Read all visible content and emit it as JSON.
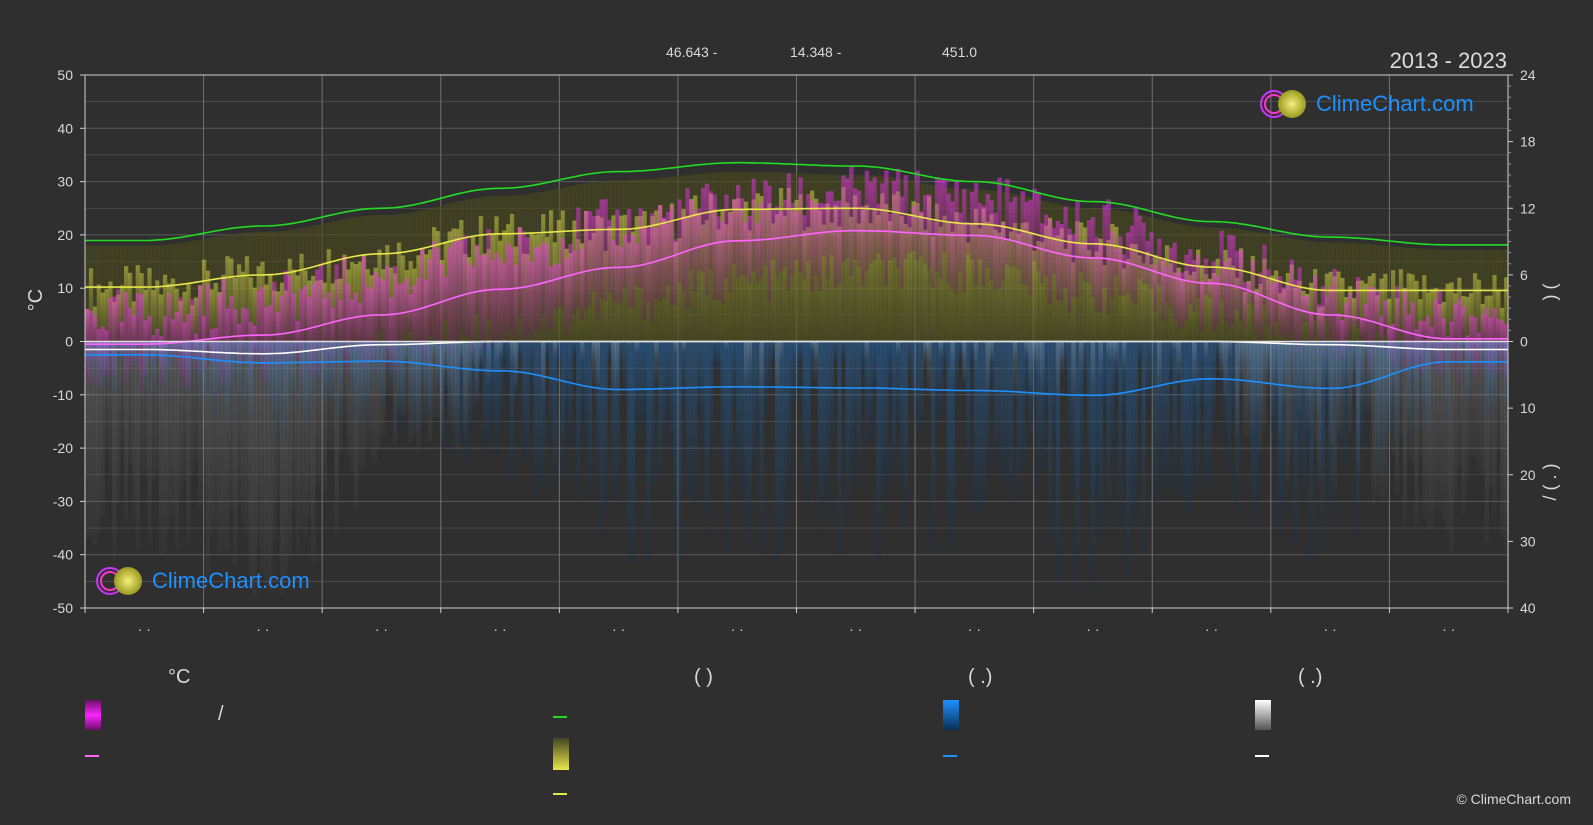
{
  "header": {
    "period": "2013 - 2023",
    "coord_lat": "46.643 -",
    "coord_lon": "14.348 -",
    "elevation": "451.0"
  },
  "logo": {
    "text": "ClimeChart.com"
  },
  "copyright": "© ClimeChart.com",
  "axes": {
    "left_unit": "°C",
    "left_ticks": [
      50,
      40,
      30,
      20,
      10,
      0,
      -10,
      -20,
      -30,
      -40,
      -50
    ],
    "right_top_ticks": [
      24,
      18,
      12,
      6,
      0
    ],
    "right_bottom_ticks": [
      10,
      20,
      30,
      40
    ],
    "right_label_top": ")   (",
    "right_label_bottom": "/   ( . )",
    "month_labels": [
      "· ·",
      "· ·",
      "· ·",
      "· ·",
      "· ·",
      "· ·",
      "· ·",
      "· ·",
      "· ·",
      "· ·",
      "· ·",
      "· ·"
    ]
  },
  "legend": {
    "temp_header": "°C",
    "sun_header": "(          )",
    "rain_header": "(   .)",
    "snow_header": "(   .)",
    "temp_range_label": "/"
  },
  "colors": {
    "daylight": "#22dd22",
    "sunshine": "#e8e84a",
    "temp_mean": "#ff66ff",
    "rain": "#1e90ff",
    "snow": "#ffffff",
    "temp_band": "#cc33cc",
    "sun_band": "#9a9a2e"
  },
  "chart_data": {
    "type": "line",
    "title": "",
    "x_months": [
      1,
      2,
      3,
      4,
      5,
      6,
      7,
      8,
      9,
      10,
      11,
      12
    ],
    "left_axis": {
      "unit": "°C",
      "ylim": [
        -50,
        50
      ]
    },
    "right_axis_top": {
      "ylim": [
        0,
        24
      ]
    },
    "right_axis_bottom": {
      "ylim": [
        0,
        40
      ],
      "inverted": true
    },
    "series": [
      {
        "key": "daylight",
        "axis": "right_top",
        "values": [
          9.1,
          10.4,
          12.0,
          13.8,
          15.3,
          16.1,
          15.8,
          14.4,
          12.6,
          10.8,
          9.4,
          8.7
        ]
      },
      {
        "key": "sunshine",
        "axis": "right_top",
        "values": [
          4.9,
          6.0,
          7.9,
          9.7,
          10.1,
          11.9,
          12.0,
          10.6,
          8.8,
          6.7,
          4.6,
          4.6
        ]
      },
      {
        "key": "temp_mean",
        "axis": "left",
        "values": [
          -0.5,
          1.2,
          5.0,
          9.8,
          13.9,
          18.9,
          20.8,
          19.9,
          15.7,
          10.9,
          5.0,
          0.5
        ]
      },
      {
        "key": "snow",
        "axis": "left",
        "values": [
          -1.5,
          -2.3,
          -0.6,
          0.0,
          0.0,
          0.0,
          0.0,
          0.0,
          0.0,
          0.0,
          -0.6,
          -1.5
        ]
      },
      {
        "key": "rain",
        "axis": "left",
        "values": [
          -2.5,
          -4.0,
          -3.7,
          -5.5,
          -9.0,
          -8.5,
          -8.7,
          -9.2,
          -10.1,
          -7.0,
          -8.8,
          -3.8
        ]
      },
      {
        "key": "temp_max_band",
        "axis": "left",
        "values": [
          5,
          8,
          12,
          17,
          22,
          26,
          28,
          27,
          22,
          16,
          9,
          5
        ]
      },
      {
        "key": "temp_min_band",
        "axis": "left",
        "values": [
          -6,
          -5,
          -2,
          2,
          7,
          11,
          13,
          13,
          9,
          5,
          0,
          -4
        ]
      }
    ]
  }
}
